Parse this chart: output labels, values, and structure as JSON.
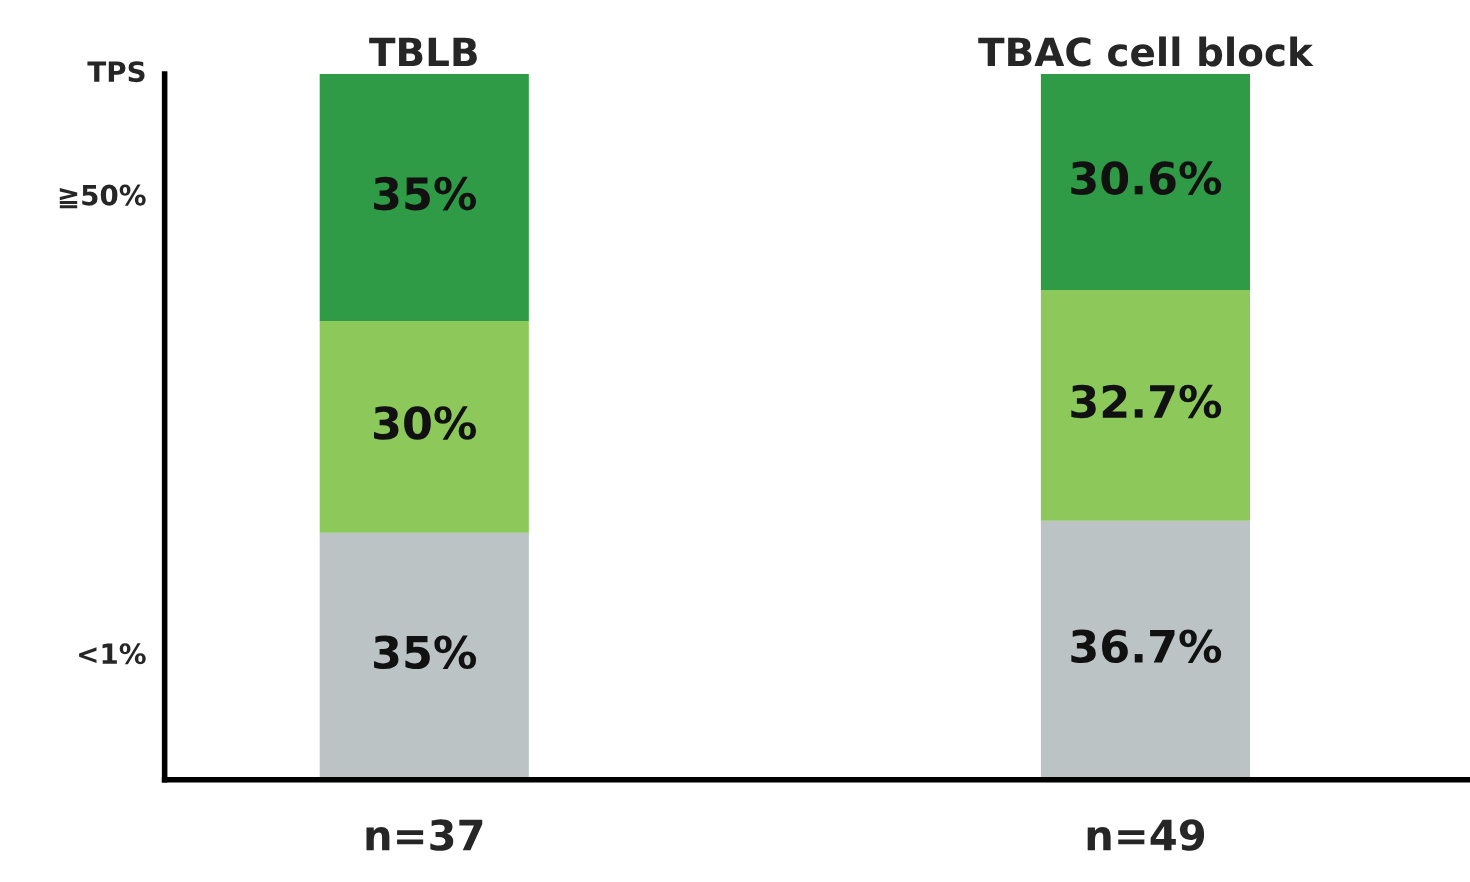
{
  "chart_data": {
    "type": "bar",
    "stacked": true,
    "legend": false,
    "grid": false,
    "ylabel": "TPS",
    "categories": [
      "n=37",
      "n=49"
    ],
    "series": [
      {
        "color": "#bcc3c4",
        "values": [
          35,
          36.7
        ],
        "value_labels": [
          "35%",
          "36.7%"
        ]
      },
      {
        "color": "#8cc85a",
        "values": [
          30,
          32.7
        ],
        "value_labels": [
          "30%",
          "32.7%"
        ]
      },
      {
        "color": "#2f9b46",
        "values": [
          35,
          30.6
        ],
        "value_labels": [
          "35%",
          "30.6%"
        ]
      }
    ],
    "annotations": [
      {
        "text": "TBLB",
        "x": "n=37",
        "y": 100
      },
      {
        "text": "TBAC cell block",
        "x": "n=49",
        "y": 100
      },
      "≧50%",
      "<1%"
    ]
  }
}
